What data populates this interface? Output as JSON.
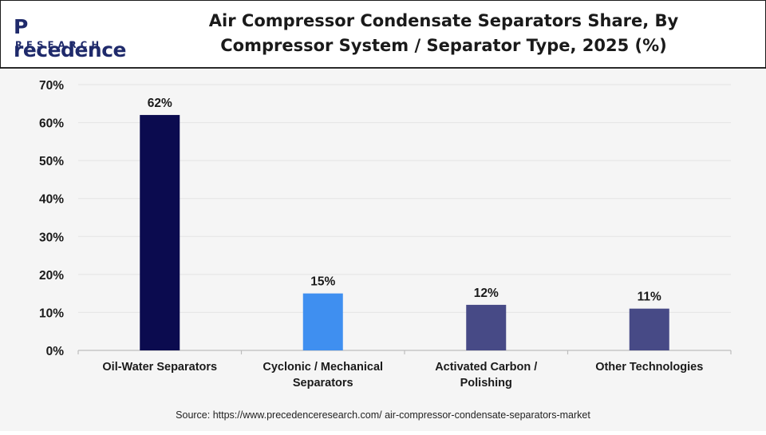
{
  "brand": {
    "name_prefix": "P",
    "name_rest": "recedence",
    "sub": "RESEARCH"
  },
  "header": {
    "title_line1": "Air Compressor Condensate Separators Share, By",
    "title_line2": "Compressor System / Separator Type, 2025 (%)"
  },
  "chart_data": {
    "type": "bar",
    "categories": [
      [
        "Oil-Water Separators"
      ],
      [
        "Cyclonic / Mechanical",
        "Separators"
      ],
      [
        "Activated Carbon /",
        "Polishing"
      ],
      [
        "Other Technologies"
      ]
    ],
    "values": [
      62,
      15,
      12,
      11
    ],
    "value_labels": [
      "62%",
      "15%",
      "12%",
      "11%"
    ],
    "bar_colors": [
      "#0b0b4f",
      "#3f8ff0",
      "#474a86",
      "#474a86"
    ],
    "ylim": [
      0,
      70
    ],
    "yticks": [
      0,
      10,
      20,
      30,
      40,
      50,
      60,
      70
    ],
    "ytick_labels": [
      "0%",
      "10%",
      "20%",
      "30%",
      "40%",
      "50%",
      "60%",
      "70%"
    ],
    "grid": true,
    "title": "Air Compressor Condensate Separators Share, By Compressor System / Separator Type, 2025 (%)",
    "xlabel": "",
    "ylabel": ""
  },
  "footer": {
    "source": "Source: https://www.precedenceresearch.com/ air-compressor-condensate-separators-market"
  }
}
